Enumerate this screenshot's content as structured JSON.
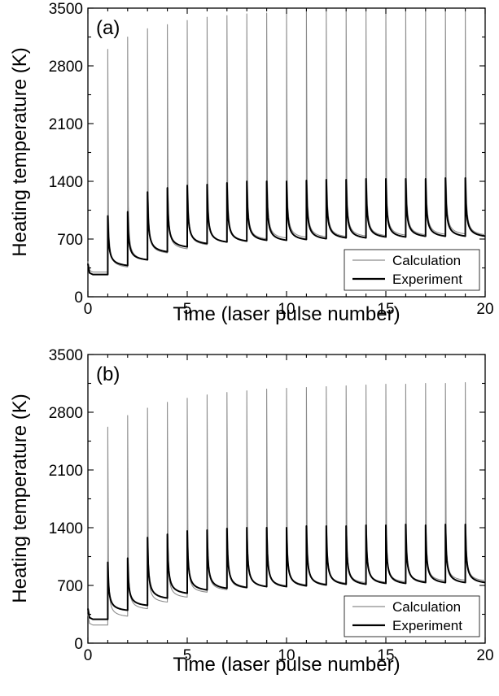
{
  "chart_data": [
    {
      "type": "line",
      "panel_label": "(a)",
      "xlabel": "Time (laser pulse number)",
      "ylabel": "Heating temperature (K)",
      "xlim": [
        0,
        20
      ],
      "ylim": [
        0,
        3500
      ],
      "xticks": [
        0,
        5,
        10,
        15,
        20
      ],
      "yticks": [
        0,
        700,
        1400,
        2100,
        2800,
        3500
      ],
      "legend_position": "bottom-right",
      "pulse_times": [
        1,
        2,
        3,
        4,
        5,
        6,
        7,
        8,
        9,
        10,
        11,
        12,
        13,
        14,
        15,
        16,
        17,
        18,
        19
      ],
      "series": [
        {
          "name": "Calculation",
          "color": "#8c8c8c",
          "initial": 300,
          "peaks": [
            3000,
            3150,
            3250,
            3300,
            3350,
            3390,
            3410,
            3430,
            3440,
            3450,
            3460,
            3470,
            3475,
            3480,
            3485,
            3490,
            3495,
            3500,
            3500
          ],
          "troughs": [
            300,
            330,
            420,
            500,
            550,
            600,
            630,
            650,
            670,
            680,
            690,
            695,
            700,
            705,
            710,
            715,
            720,
            725,
            730,
            720
          ]
        },
        {
          "name": "Experiment",
          "color": "#000000",
          "initial": 270,
          "peaks": [
            980,
            1030,
            1270,
            1320,
            1350,
            1360,
            1380,
            1400,
            1400,
            1400,
            1410,
            1420,
            1420,
            1430,
            1430,
            1430,
            1430,
            1440,
            1440
          ],
          "troughs": [
            270,
            350,
            420,
            510,
            570,
            610,
            630,
            640,
            650,
            650,
            660,
            670,
            680,
            680,
            690,
            690,
            700,
            700,
            700,
            700
          ]
        }
      ]
    },
    {
      "type": "line",
      "panel_label": "(b)",
      "xlabel": "Time (laser pulse number)",
      "ylabel": "Heating temperature (K)",
      "xlim": [
        0,
        20
      ],
      "ylim": [
        0,
        3500
      ],
      "xticks": [
        0,
        5,
        10,
        15,
        20
      ],
      "yticks": [
        0,
        700,
        1400,
        2100,
        2800,
        3500
      ],
      "legend_position": "bottom-right",
      "pulse_times": [
        1,
        2,
        3,
        4,
        5,
        6,
        7,
        8,
        9,
        10,
        11,
        12,
        13,
        14,
        15,
        16,
        17,
        18,
        19
      ],
      "series": [
        {
          "name": "Calculation",
          "color": "#8c8c8c",
          "initial": 220,
          "peaks": [
            2620,
            2760,
            2850,
            2920,
            2970,
            3010,
            3040,
            3060,
            3080,
            3090,
            3100,
            3110,
            3120,
            3130,
            3140,
            3140,
            3150,
            3150,
            3160
          ],
          "troughs": [
            220,
            300,
            390,
            470,
            530,
            590,
            620,
            640,
            660,
            670,
            680,
            690,
            700,
            705,
            710,
            715,
            720,
            730,
            735,
            730
          ]
        },
        {
          "name": "Experiment",
          "color": "#000000",
          "initial": 290,
          "peaks": [
            980,
            1030,
            1280,
            1320,
            1360,
            1370,
            1390,
            1400,
            1400,
            1400,
            1420,
            1420,
            1420,
            1430,
            1430,
            1440,
            1430,
            1440,
            1440
          ],
          "troughs": [
            290,
            370,
            430,
            510,
            570,
            610,
            630,
            640,
            650,
            650,
            660,
            670,
            680,
            680,
            690,
            690,
            700,
            700,
            700,
            700
          ]
        }
      ]
    }
  ]
}
